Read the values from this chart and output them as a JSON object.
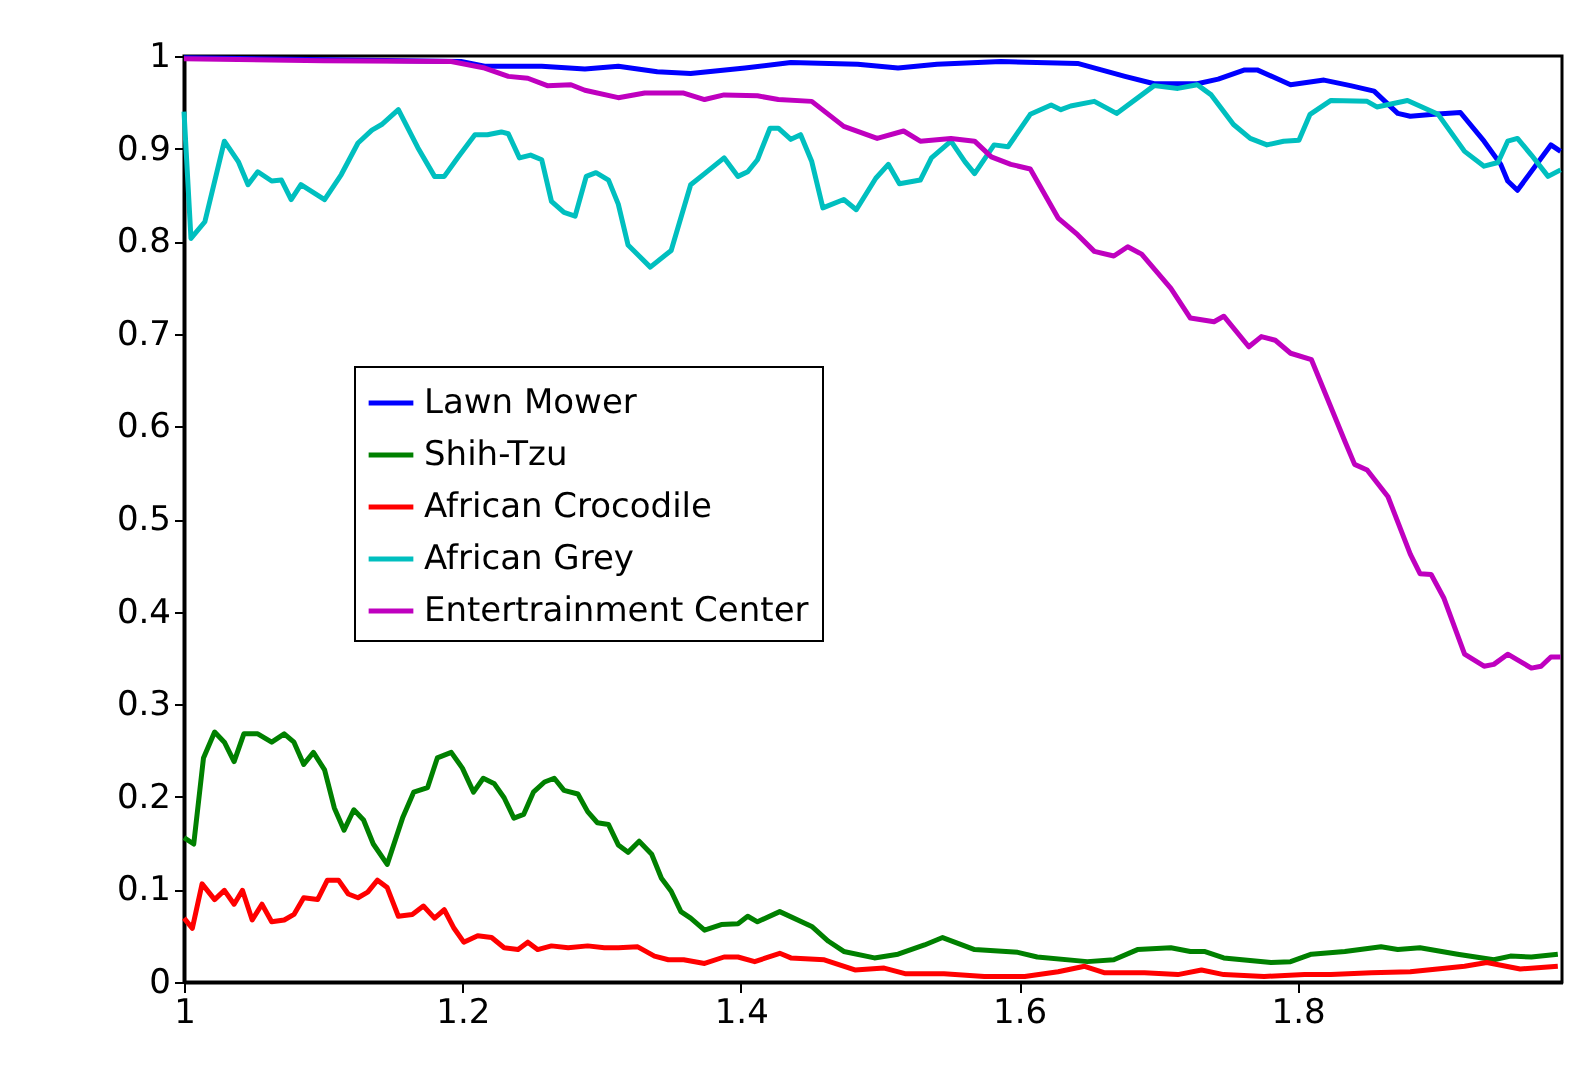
{
  "chart_data": {
    "type": "line",
    "xlim": [
      1,
      1.99
    ],
    "ylim": [
      0,
      1
    ],
    "xticks": [
      1,
      1.2,
      1.4,
      1.6,
      1.8
    ],
    "yticks": [
      0,
      0.1,
      0.2,
      0.3,
      0.4,
      0.5,
      0.6,
      0.7,
      0.8,
      0.9,
      1
    ],
    "grid": false,
    "legend": "left",
    "marker": "none",
    "line_style": "solid",
    "series": [
      {
        "name": "Lawn Mower",
        "color": "#0000ff",
        "x": [
          1.0,
          1.199,
          1.216,
          1.257,
          1.288,
          1.312,
          1.34,
          1.364,
          1.403,
          1.436,
          1.484,
          1.513,
          1.541,
          1.587,
          1.642,
          1.676,
          1.697,
          1.728,
          1.743,
          1.762,
          1.771,
          1.795,
          1.819,
          1.838,
          1.855,
          1.872,
          1.881,
          1.898,
          1.917,
          1.934,
          1.946,
          1.951,
          1.958,
          1.982,
          1.989
        ],
        "values": [
          0.998,
          0.994,
          0.989,
          0.989,
          0.986,
          0.989,
          0.983,
          0.981,
          0.987,
          0.993,
          0.991,
          0.987,
          0.991,
          0.994,
          0.992,
          0.978,
          0.97,
          0.97,
          0.975,
          0.985,
          0.985,
          0.969,
          0.974,
          0.968,
          0.962,
          0.938,
          0.935,
          0.937,
          0.939,
          0.908,
          0.883,
          0.865,
          0.855,
          0.904,
          0.897
        ]
      },
      {
        "name": "Shih-Tzu",
        "color": "#008000",
        "x": [
          1.0,
          1.007,
          1.014,
          1.022,
          1.029,
          1.036,
          1.043,
          1.053,
          1.063,
          1.072,
          1.079,
          1.086,
          1.093,
          1.101,
          1.108,
          1.115,
          1.122,
          1.129,
          1.136,
          1.146,
          1.157,
          1.165,
          1.175,
          1.182,
          1.192,
          1.2,
          1.208,
          1.215,
          1.223,
          1.23,
          1.237,
          1.244,
          1.251,
          1.259,
          1.266,
          1.273,
          1.283,
          1.29,
          1.297,
          1.305,
          1.312,
          1.319,
          1.327,
          1.336,
          1.343,
          1.35,
          1.357,
          1.364,
          1.374,
          1.386,
          1.398,
          1.405,
          1.412,
          1.428,
          1.451,
          1.463,
          1.474,
          1.496,
          1.513,
          1.532,
          1.545,
          1.568,
          1.599,
          1.613,
          1.649,
          1.668,
          1.685,
          1.709,
          1.723,
          1.733,
          1.747,
          1.781,
          1.795,
          1.81,
          1.834,
          1.86,
          1.872,
          1.888,
          1.915,
          1.941,
          1.953,
          1.968,
          1.987
        ],
        "values": [
          0.156,
          0.149,
          0.242,
          0.27,
          0.259,
          0.238,
          0.268,
          0.268,
          0.259,
          0.268,
          0.259,
          0.235,
          0.248,
          0.229,
          0.188,
          0.164,
          0.186,
          0.175,
          0.149,
          0.127,
          0.177,
          0.205,
          0.21,
          0.242,
          0.248,
          0.231,
          0.205,
          0.22,
          0.214,
          0.199,
          0.177,
          0.181,
          0.205,
          0.216,
          0.22,
          0.207,
          0.203,
          0.184,
          0.172,
          0.17,
          0.148,
          0.14,
          0.152,
          0.138,
          0.112,
          0.098,
          0.076,
          0.069,
          0.056,
          0.062,
          0.063,
          0.071,
          0.065,
          0.076,
          0.06,
          0.044,
          0.033,
          0.026,
          0.03,
          0.04,
          0.048,
          0.035,
          0.032,
          0.027,
          0.022,
          0.024,
          0.035,
          0.037,
          0.033,
          0.033,
          0.026,
          0.021,
          0.022,
          0.03,
          0.033,
          0.038,
          0.035,
          0.037,
          0.03,
          0.024,
          0.028,
          0.027,
          0.03
        ]
      },
      {
        "name": "African Crocodile",
        "color": "#ff0000",
        "x": [
          1.0,
          1.006,
          1.013,
          1.022,
          1.029,
          1.036,
          1.042,
          1.049,
          1.056,
          1.063,
          1.072,
          1.079,
          1.086,
          1.096,
          1.103,
          1.111,
          1.118,
          1.125,
          1.132,
          1.139,
          1.146,
          1.154,
          1.164,
          1.172,
          1.18,
          1.187,
          1.194,
          1.201,
          1.211,
          1.221,
          1.23,
          1.24,
          1.247,
          1.254,
          1.264,
          1.276,
          1.29,
          1.302,
          1.312,
          1.326,
          1.338,
          1.348,
          1.359,
          1.374,
          1.388,
          1.398,
          1.41,
          1.428,
          1.436,
          1.46,
          1.482,
          1.503,
          1.518,
          1.546,
          1.575,
          1.604,
          1.628,
          1.647,
          1.661,
          1.69,
          1.714,
          1.731,
          1.747,
          1.776,
          1.805,
          1.824,
          1.853,
          1.881,
          1.92,
          1.936,
          1.96,
          1.987
        ],
        "values": [
          0.069,
          0.058,
          0.106,
          0.089,
          0.099,
          0.084,
          0.099,
          0.067,
          0.084,
          0.065,
          0.067,
          0.073,
          0.091,
          0.089,
          0.11,
          0.11,
          0.095,
          0.091,
          0.097,
          0.11,
          0.102,
          0.071,
          0.073,
          0.082,
          0.069,
          0.078,
          0.058,
          0.043,
          0.05,
          0.048,
          0.037,
          0.035,
          0.043,
          0.035,
          0.039,
          0.037,
          0.039,
          0.037,
          0.037,
          0.038,
          0.028,
          0.024,
          0.024,
          0.02,
          0.027,
          0.027,
          0.022,
          0.031,
          0.026,
          0.024,
          0.013,
          0.015,
          0.009,
          0.009,
          0.006,
          0.006,
          0.011,
          0.017,
          0.01,
          0.01,
          0.008,
          0.013,
          0.008,
          0.006,
          0.008,
          0.008,
          0.01,
          0.011,
          0.017,
          0.021,
          0.014,
          0.017
        ]
      },
      {
        "name": "African Grey",
        "color": "#00bfbf",
        "x": [
          1.0,
          1.005,
          1.015,
          1.029,
          1.039,
          1.046,
          1.053,
          1.063,
          1.07,
          1.077,
          1.084,
          1.101,
          1.113,
          1.125,
          1.135,
          1.142,
          1.154,
          1.168,
          1.18,
          1.187,
          1.197,
          1.209,
          1.218,
          1.228,
          1.233,
          1.241,
          1.249,
          1.257,
          1.264,
          1.273,
          1.281,
          1.289,
          1.296,
          1.305,
          1.312,
          1.319,
          1.335,
          1.35,
          1.364,
          1.374,
          1.388,
          1.398,
          1.405,
          1.412,
          1.421,
          1.427,
          1.436,
          1.443,
          1.451,
          1.459,
          1.474,
          1.483,
          1.497,
          1.506,
          1.514,
          1.529,
          1.537,
          1.551,
          1.561,
          1.568,
          1.582,
          1.592,
          1.608,
          1.623,
          1.63,
          1.637,
          1.654,
          1.67,
          1.697,
          1.714,
          1.728,
          1.738,
          1.754,
          1.766,
          1.778,
          1.79,
          1.801,
          1.809,
          1.824,
          1.85,
          1.857,
          1.879,
          1.901,
          1.92,
          1.934,
          1.944,
          1.951,
          1.958,
          1.968,
          1.98,
          1.989
        ],
        "values": [
          0.94,
          0.803,
          0.821,
          0.908,
          0.886,
          0.861,
          0.875,
          0.865,
          0.866,
          0.845,
          0.861,
          0.845,
          0.872,
          0.906,
          0.92,
          0.926,
          0.942,
          0.901,
          0.87,
          0.87,
          0.891,
          0.915,
          0.915,
          0.918,
          0.916,
          0.89,
          0.893,
          0.888,
          0.843,
          0.831,
          0.827,
          0.87,
          0.874,
          0.866,
          0.84,
          0.796,
          0.772,
          0.79,
          0.861,
          0.873,
          0.89,
          0.87,
          0.875,
          0.888,
          0.922,
          0.922,
          0.91,
          0.915,
          0.886,
          0.836,
          0.845,
          0.834,
          0.868,
          0.883,
          0.862,
          0.866,
          0.89,
          0.908,
          0.886,
          0.873,
          0.904,
          0.902,
          0.937,
          0.947,
          0.942,
          0.946,
          0.951,
          0.938,
          0.968,
          0.965,
          0.969,
          0.958,
          0.926,
          0.911,
          0.904,
          0.908,
          0.909,
          0.937,
          0.952,
          0.951,
          0.945,
          0.952,
          0.937,
          0.897,
          0.881,
          0.885,
          0.908,
          0.911,
          0.893,
          0.87,
          0.877
        ]
      },
      {
        "name": "Entertrainment Center",
        "color": "#bf00bf",
        "x": [
          1.0,
          1.1,
          1.192,
          1.216,
          1.233,
          1.247,
          1.261,
          1.278,
          1.288,
          1.312,
          1.331,
          1.359,
          1.374,
          1.388,
          1.412,
          1.427,
          1.451,
          1.474,
          1.498,
          1.517,
          1.529,
          1.551,
          1.568,
          1.58,
          1.594,
          1.608,
          1.628,
          1.642,
          1.654,
          1.668,
          1.678,
          1.688,
          1.709,
          1.723,
          1.74,
          1.747,
          1.765,
          1.774,
          1.784,
          1.795,
          1.81,
          1.834,
          1.841,
          1.85,
          1.865,
          1.881,
          1.888,
          1.896,
          1.905,
          1.92,
          1.934,
          1.941,
          1.951,
          1.968,
          1.975,
          1.982,
          1.989
        ],
        "values": [
          0.997,
          0.995,
          0.994,
          0.987,
          0.978,
          0.976,
          0.968,
          0.969,
          0.963,
          0.955,
          0.96,
          0.96,
          0.953,
          0.958,
          0.957,
          0.953,
          0.951,
          0.924,
          0.911,
          0.919,
          0.908,
          0.911,
          0.908,
          0.891,
          0.883,
          0.878,
          0.825,
          0.807,
          0.789,
          0.784,
          0.794,
          0.786,
          0.749,
          0.717,
          0.713,
          0.719,
          0.686,
          0.697,
          0.693,
          0.679,
          0.672,
          0.584,
          0.559,
          0.553,
          0.524,
          0.462,
          0.441,
          0.44,
          0.415,
          0.354,
          0.341,
          0.343,
          0.354,
          0.339,
          0.341,
          0.351,
          0.351
        ]
      }
    ]
  }
}
